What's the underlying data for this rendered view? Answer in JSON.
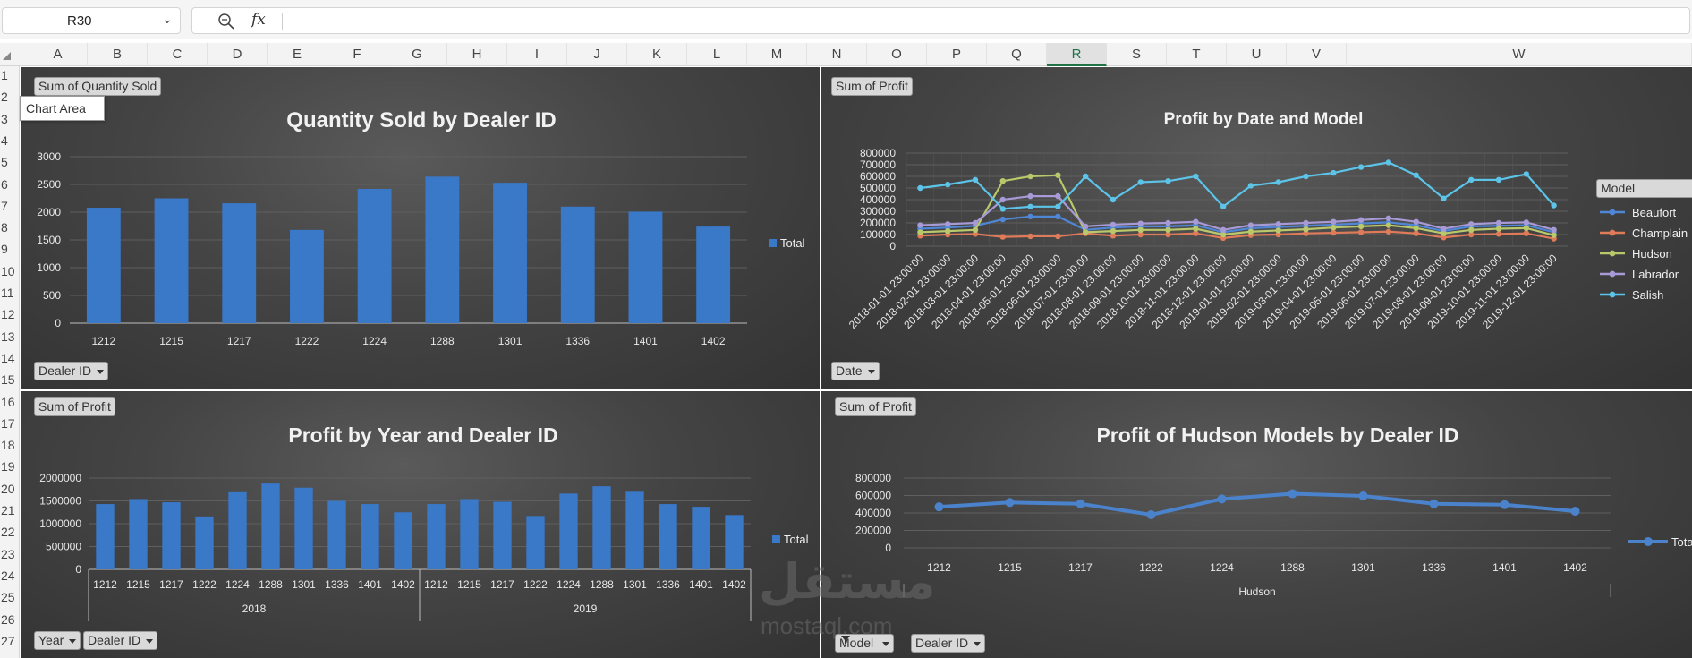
{
  "formula_bar": {
    "name_box": "R30",
    "fx_label": "fx",
    "formula": ""
  },
  "columns": [
    "A",
    "B",
    "C",
    "D",
    "E",
    "F",
    "G",
    "H",
    "I",
    "J",
    "K",
    "L",
    "M",
    "N",
    "O",
    "P",
    "Q",
    "R",
    "S",
    "T",
    "U",
    "V",
    "W"
  ],
  "selected_column": "R",
  "rows": [
    "1",
    "2",
    "3",
    "4",
    "5",
    "6",
    "7",
    "8",
    "9",
    "10",
    "11",
    "12",
    "13",
    "14",
    "15",
    "16",
    "17",
    "18",
    "19",
    "20",
    "21",
    "22",
    "23",
    "24",
    "25",
    "26",
    "27"
  ],
  "tooltip": "Chart Area",
  "watermark": {
    "arabic": "مستقل",
    "latin": "mostaql.com"
  },
  "charts": {
    "quantity": {
      "value_button": "Sum of Quantity Sold",
      "axis_button": "Dealer ID"
    },
    "profit_date": {
      "value_button": "Sum of Profit",
      "axis_button": "Date",
      "legend_title": "Model"
    },
    "profit_year": {
      "value_button": "Sum of Profit",
      "axis_buttons": [
        "Year",
        "Dealer ID"
      ]
    },
    "hudson": {
      "value_button": "Sum of Profit",
      "axis_buttons": [
        "Model",
        "Dealer ID"
      ]
    }
  },
  "chart_data": [
    {
      "id": "quantity",
      "type": "bar",
      "title": "Quantity Sold by Dealer ID",
      "categories": [
        "1212",
        "1215",
        "1217",
        "1222",
        "1224",
        "1288",
        "1301",
        "1336",
        "1401",
        "1402"
      ],
      "series": [
        {
          "name": "Total",
          "values": [
            2080,
            2250,
            2160,
            1680,
            2420,
            2640,
            2530,
            2100,
            2010,
            1740
          ]
        }
      ],
      "yticks": [
        "0",
        "500",
        "1000",
        "1500",
        "2000",
        "2500",
        "3000"
      ],
      "ylim": [
        0,
        3000
      ],
      "legend": "right",
      "grid": true,
      "colors": {
        "bar": "#3a78c8"
      }
    },
    {
      "id": "profit_date",
      "type": "line",
      "title": "Profit by Date and Model",
      "x": [
        "2018-01-01 23:00:00",
        "2018-02-01 23:00:00",
        "2018-03-01 23:00:00",
        "2018-04-01 23:00:00",
        "2018-05-01 23:00:00",
        "2018-06-01 23:00:00",
        "2018-07-01 23:00:00",
        "2018-08-01 23:00:00",
        "2018-09-01 23:00:00",
        "2018-10-01 23:00:00",
        "2018-11-01 23:00:00",
        "2018-12-01 23:00:00",
        "2019-01-01 23:00:00",
        "2019-02-01 23:00:00",
        "2019-03-01 23:00:00",
        "2019-04-01 23:00:00",
        "2019-05-01 23:00:00",
        "2019-06-01 23:00:00",
        "2019-07-01 23:00:00",
        "2019-08-01 23:00:00",
        "2019-09-01 23:00:00",
        "2019-10-01 23:00:00",
        "2019-11-01 23:00:00",
        "2019-12-01 23:00:00"
      ],
      "series": [
        {
          "name": "Beaufort",
          "color": "#4f86d6",
          "values": [
            150000,
            160000,
            175000,
            230000,
            255000,
            255000,
            140000,
            160000,
            170000,
            170000,
            180000,
            120000,
            155000,
            165000,
            175000,
            185000,
            195000,
            205000,
            180000,
            130000,
            170000,
            175000,
            180000,
            120000
          ]
        },
        {
          "name": "Champlain",
          "color": "#e07b5a",
          "values": [
            90000,
            100000,
            105000,
            80000,
            85000,
            85000,
            110000,
            90000,
            100000,
            100000,
            110000,
            70000,
            95000,
            100000,
            110000,
            115000,
            120000,
            125000,
            110000,
            75000,
            100000,
            105000,
            110000,
            65000
          ]
        },
        {
          "name": "Hudson",
          "color": "#b8c86a",
          "values": [
            120000,
            130000,
            140000,
            560000,
            600000,
            610000,
            120000,
            130000,
            140000,
            140000,
            150000,
            100000,
            125000,
            135000,
            145000,
            160000,
            170000,
            180000,
            155000,
            110000,
            140000,
            150000,
            155000,
            95000
          ]
        },
        {
          "name": "Labrador",
          "color": "#a79ad6",
          "values": [
            180000,
            190000,
            200000,
            400000,
            430000,
            430000,
            170000,
            185000,
            195000,
            200000,
            210000,
            140000,
            180000,
            190000,
            200000,
            210000,
            225000,
            240000,
            210000,
            150000,
            190000,
            200000,
            205000,
            140000
          ]
        },
        {
          "name": "Salish",
          "color": "#5cc4e8",
          "values": [
            500000,
            530000,
            570000,
            320000,
            340000,
            340000,
            600000,
            400000,
            550000,
            560000,
            600000,
            340000,
            520000,
            550000,
            600000,
            630000,
            680000,
            720000,
            610000,
            410000,
            570000,
            570000,
            620000,
            350000
          ]
        }
      ],
      "yticks": [
        "0",
        "100000",
        "200000",
        "300000",
        "400000",
        "500000",
        "600000",
        "700000",
        "800000"
      ],
      "ylim": [
        0,
        800000
      ],
      "legend": "right",
      "grid": true
    },
    {
      "id": "profit_year",
      "type": "bar",
      "title": "Profit by Year and Dealer ID",
      "groups": [
        {
          "label": "2018",
          "categories": [
            "1212",
            "1215",
            "1217",
            "1222",
            "1224",
            "1288",
            "1301",
            "1336",
            "1401",
            "1402"
          ],
          "values": [
            1430000,
            1540000,
            1470000,
            1160000,
            1690000,
            1880000,
            1790000,
            1500000,
            1430000,
            1250000
          ]
        },
        {
          "label": "2019",
          "categories": [
            "1212",
            "1215",
            "1217",
            "1222",
            "1224",
            "1288",
            "1301",
            "1336",
            "1401",
            "1402"
          ],
          "values": [
            1430000,
            1540000,
            1480000,
            1170000,
            1660000,
            1820000,
            1700000,
            1430000,
            1370000,
            1190000
          ]
        }
      ],
      "series": [
        {
          "name": "Total"
        }
      ],
      "yticks": [
        "0",
        "500000",
        "1000000",
        "1500000",
        "2000000"
      ],
      "ylim": [
        0,
        2000000
      ],
      "legend": "right",
      "grid": true,
      "colors": {
        "bar": "#3a78c8"
      }
    },
    {
      "id": "hudson",
      "type": "line",
      "title": "Profit of Hudson Models by Dealer ID",
      "categories": [
        "1212",
        "1215",
        "1217",
        "1222",
        "1224",
        "1288",
        "1301",
        "1336",
        "1401",
        "1402"
      ],
      "group_label": "Hudson",
      "series": [
        {
          "name": "Total",
          "values": [
            470000,
            520000,
            505000,
            380000,
            560000,
            620000,
            595000,
            505000,
            495000,
            420000
          ]
        }
      ],
      "yticks": [
        "0",
        "200000",
        "400000",
        "600000",
        "800000"
      ],
      "ylim": [
        0,
        800000
      ],
      "legend": "right",
      "grid": true,
      "colors": {
        "line": "#4a82cc"
      }
    }
  ]
}
